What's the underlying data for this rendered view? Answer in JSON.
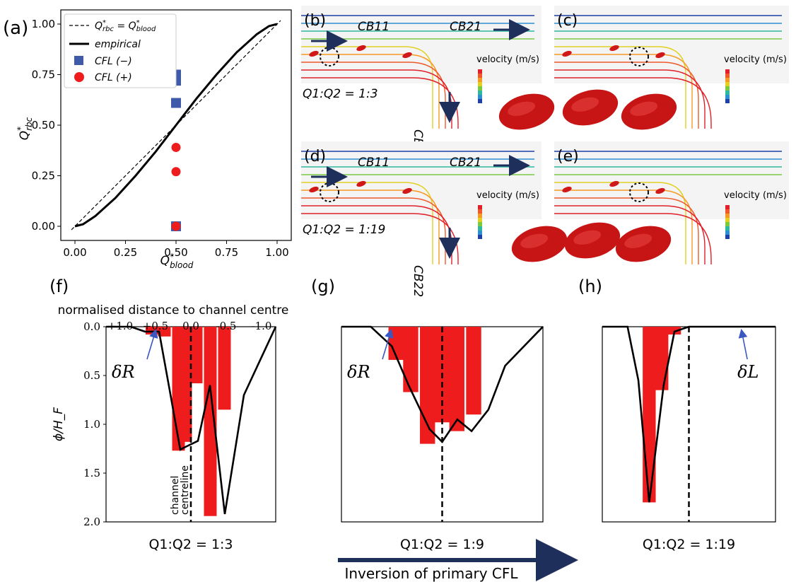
{
  "panel_labels": {
    "a": "(a)",
    "b": "(b)",
    "c": "(c)",
    "d": "(d)",
    "e": "(e)",
    "f": "(f)",
    "g": "(g)",
    "h": "(h)"
  },
  "sim_labels": {
    "cb11": "CB11",
    "cb21": "CB21",
    "cb22": "CB22",
    "ratio_b": "Q1:Q2 = 1:3",
    "ratio_d": "Q1:Q2 = 1:19",
    "velocity": "velocity (m/s)"
  },
  "colors": {
    "bar": "#ee1c1c",
    "square": "#3f5aa8",
    "circle": "#ee1c1c",
    "arrow": "#1f2f5c",
    "line": "#000000"
  },
  "bottom_common": {
    "top_axis_label": "normalised distance to channel centre",
    "top_ticks": [
      "+1.0",
      "+0.5",
      "0.0",
      "-0.5",
      "-1.0"
    ],
    "y_label": "ϕ/H_F",
    "y_ticks": [
      "0.0",
      "0.5",
      "1.0",
      "1.5",
      "2.0"
    ],
    "centreline_text_1": "channel",
    "centreline_text_2": "centreline",
    "arrow_label": "Inversion of primary CFL"
  },
  "chart_data": [
    {
      "id": "a",
      "type": "scatter",
      "xlabel": "Q*_blood",
      "ylabel": "Q*_rbc",
      "xlim": [
        -0.07,
        1.07
      ],
      "ylim": [
        -0.07,
        1.07
      ],
      "xticks": [
        "0.00",
        "0.25",
        "0.50",
        "0.75",
        "1.00"
      ],
      "yticks": [
        "0.00",
        "0.25",
        "0.50",
        "0.75",
        "1.00"
      ],
      "legend": [
        "Q*_rbc = Q*_blood",
        "empirical",
        "CFL (−)",
        "CFL (+)"
      ],
      "legend_position": "top-left",
      "series": [
        {
          "name": "CFL (−)",
          "marker": "square",
          "x": [
            0.5,
            0.5,
            0.5,
            0.5
          ],
          "y": [
            0.75,
            0.72,
            0.61,
            0.0
          ]
        },
        {
          "name": "CFL (+)",
          "marker": "circle",
          "x": [
            0.5,
            0.5,
            0.5
          ],
          "y": [
            0.39,
            0.27,
            0.0
          ]
        }
      ],
      "empirical": {
        "x": [
          0.0,
          0.04,
          0.1,
          0.2,
          0.3,
          0.4,
          0.5,
          0.6,
          0.7,
          0.8,
          0.9,
          0.96,
          1.0
        ],
        "y": [
          0.0,
          0.01,
          0.05,
          0.14,
          0.25,
          0.37,
          0.5,
          0.63,
          0.75,
          0.86,
          0.95,
          0.99,
          1.0
        ]
      }
    },
    {
      "id": "f",
      "type": "bar",
      "caption": "Q1:Q2 = 1:3",
      "orientation": "inverted",
      "ylim": [
        0,
        2.0
      ],
      "bars": {
        "x": [
          0.55,
          0.375,
          0.175,
          0.075,
          -0.075,
          -0.275,
          -0.475,
          -0.68
        ],
        "values": [
          0.08,
          0.1,
          1.27,
          1.18,
          0.58,
          1.94,
          0.85,
          0.0
        ]
      },
      "line": {
        "x": [
          1.2,
          0.85,
          0.65,
          0.45,
          0.3,
          0.15,
          0.1,
          -0.1,
          -0.27,
          -0.48,
          -0.75,
          -1.2
        ],
        "y": [
          0.0,
          0.0,
          0.05,
          0.05,
          0.65,
          1.26,
          1.24,
          1.17,
          0.6,
          1.92,
          0.7,
          0.0
        ]
      },
      "annotation": "δR",
      "centreline_labels": true
    },
    {
      "id": "g",
      "type": "bar",
      "caption": "Q1:Q2 = 1:9",
      "orientation": "inverted",
      "ylim": [
        0,
        2.0
      ],
      "bars": {
        "x": [
          0.55,
          0.375,
          0.175,
          0.0,
          -0.175,
          -0.375,
          -0.55
        ],
        "values": [
          0.34,
          0.67,
          1.2,
          0.98,
          1.07,
          0.9,
          0.0
        ]
      },
      "line": {
        "x": [
          1.2,
          0.85,
          0.6,
          0.4,
          0.15,
          0.0,
          -0.18,
          -0.35,
          -0.55,
          -0.75,
          -1.2
        ],
        "y": [
          0.0,
          0.0,
          0.2,
          0.6,
          1.05,
          1.18,
          0.95,
          1.07,
          0.85,
          0.4,
          0.0
        ]
      },
      "annotation": "δR"
    },
    {
      "id": "h",
      "type": "bar",
      "caption": "Q1:Q2 = 1:19",
      "orientation": "inverted",
      "ylim": [
        0,
        2.0
      ],
      "bars": {
        "x": [
          0.55,
          0.375,
          0.2
        ],
        "values": [
          1.8,
          0.65,
          0.08
        ]
      },
      "line": {
        "x": [
          1.2,
          0.85,
          0.7,
          0.55,
          0.35,
          0.2,
          0.0,
          -0.2,
          -1.2
        ],
        "y": [
          0.0,
          0.0,
          0.55,
          1.8,
          0.6,
          0.05,
          0.0,
          0.0,
          0.0
        ]
      },
      "annotation": "δL"
    }
  ]
}
